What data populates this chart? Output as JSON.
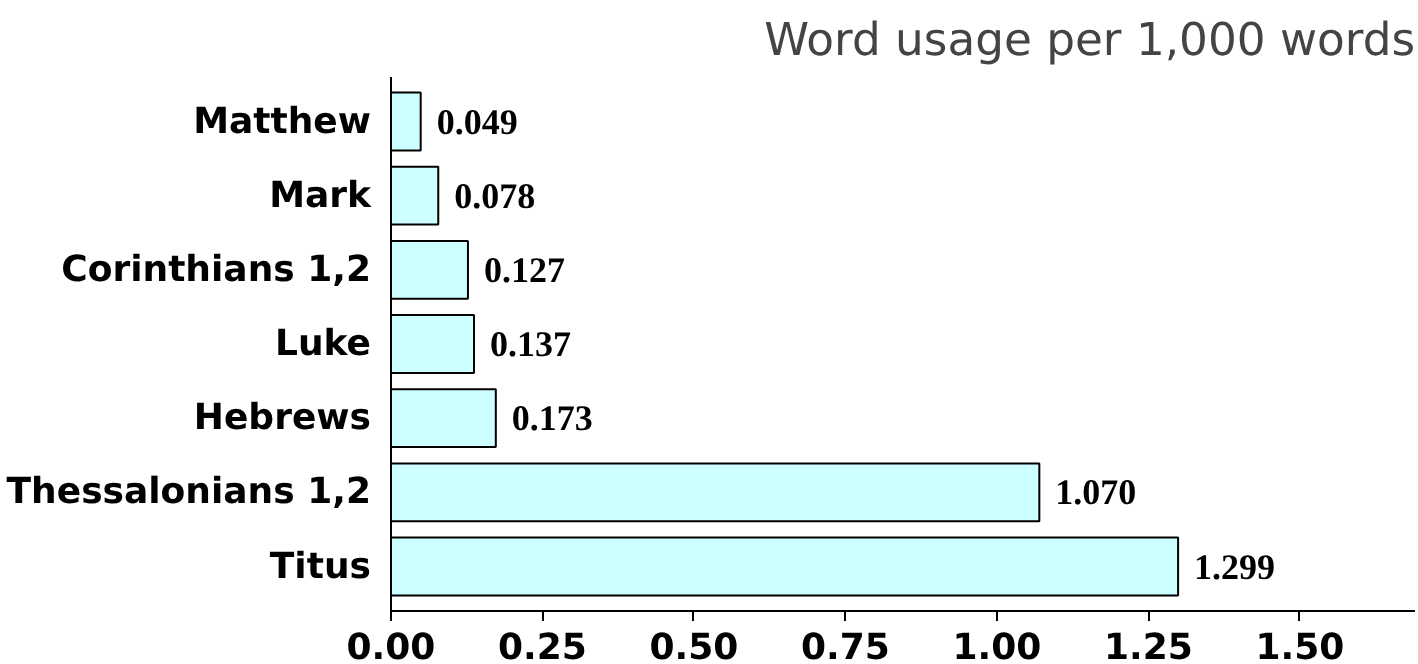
{
  "chart_data": {
    "type": "bar",
    "orientation": "horizontal",
    "title": "Word usage per 1,000 words",
    "categories": [
      "Matthew",
      "Mark",
      "Corinthians 1,2",
      "Luke",
      "Hebrews",
      "Thessalonians 1,2",
      "Titus"
    ],
    "values": [
      0.049,
      0.078,
      0.127,
      0.137,
      0.173,
      1.07,
      1.299
    ],
    "value_labels": [
      "0.049",
      "0.078",
      "0.127",
      "0.137",
      "0.173",
      "1.070",
      "1.299"
    ],
    "color": "#ccffff",
    "xlim": [
      0,
      1.69
    ],
    "xticks": [
      {
        "value": 0,
        "label": "0.00"
      },
      {
        "value": 0.25,
        "label": "0.25"
      },
      {
        "value": 0.5,
        "label": "0.50"
      },
      {
        "value": 0.75,
        "label": "0.75"
      },
      {
        "value": 1.0,
        "label": "1.00"
      },
      {
        "value": 1.25,
        "label": "1.25"
      },
      {
        "value": 1.5,
        "label": "1.50"
      }
    ],
    "grid": false
  }
}
